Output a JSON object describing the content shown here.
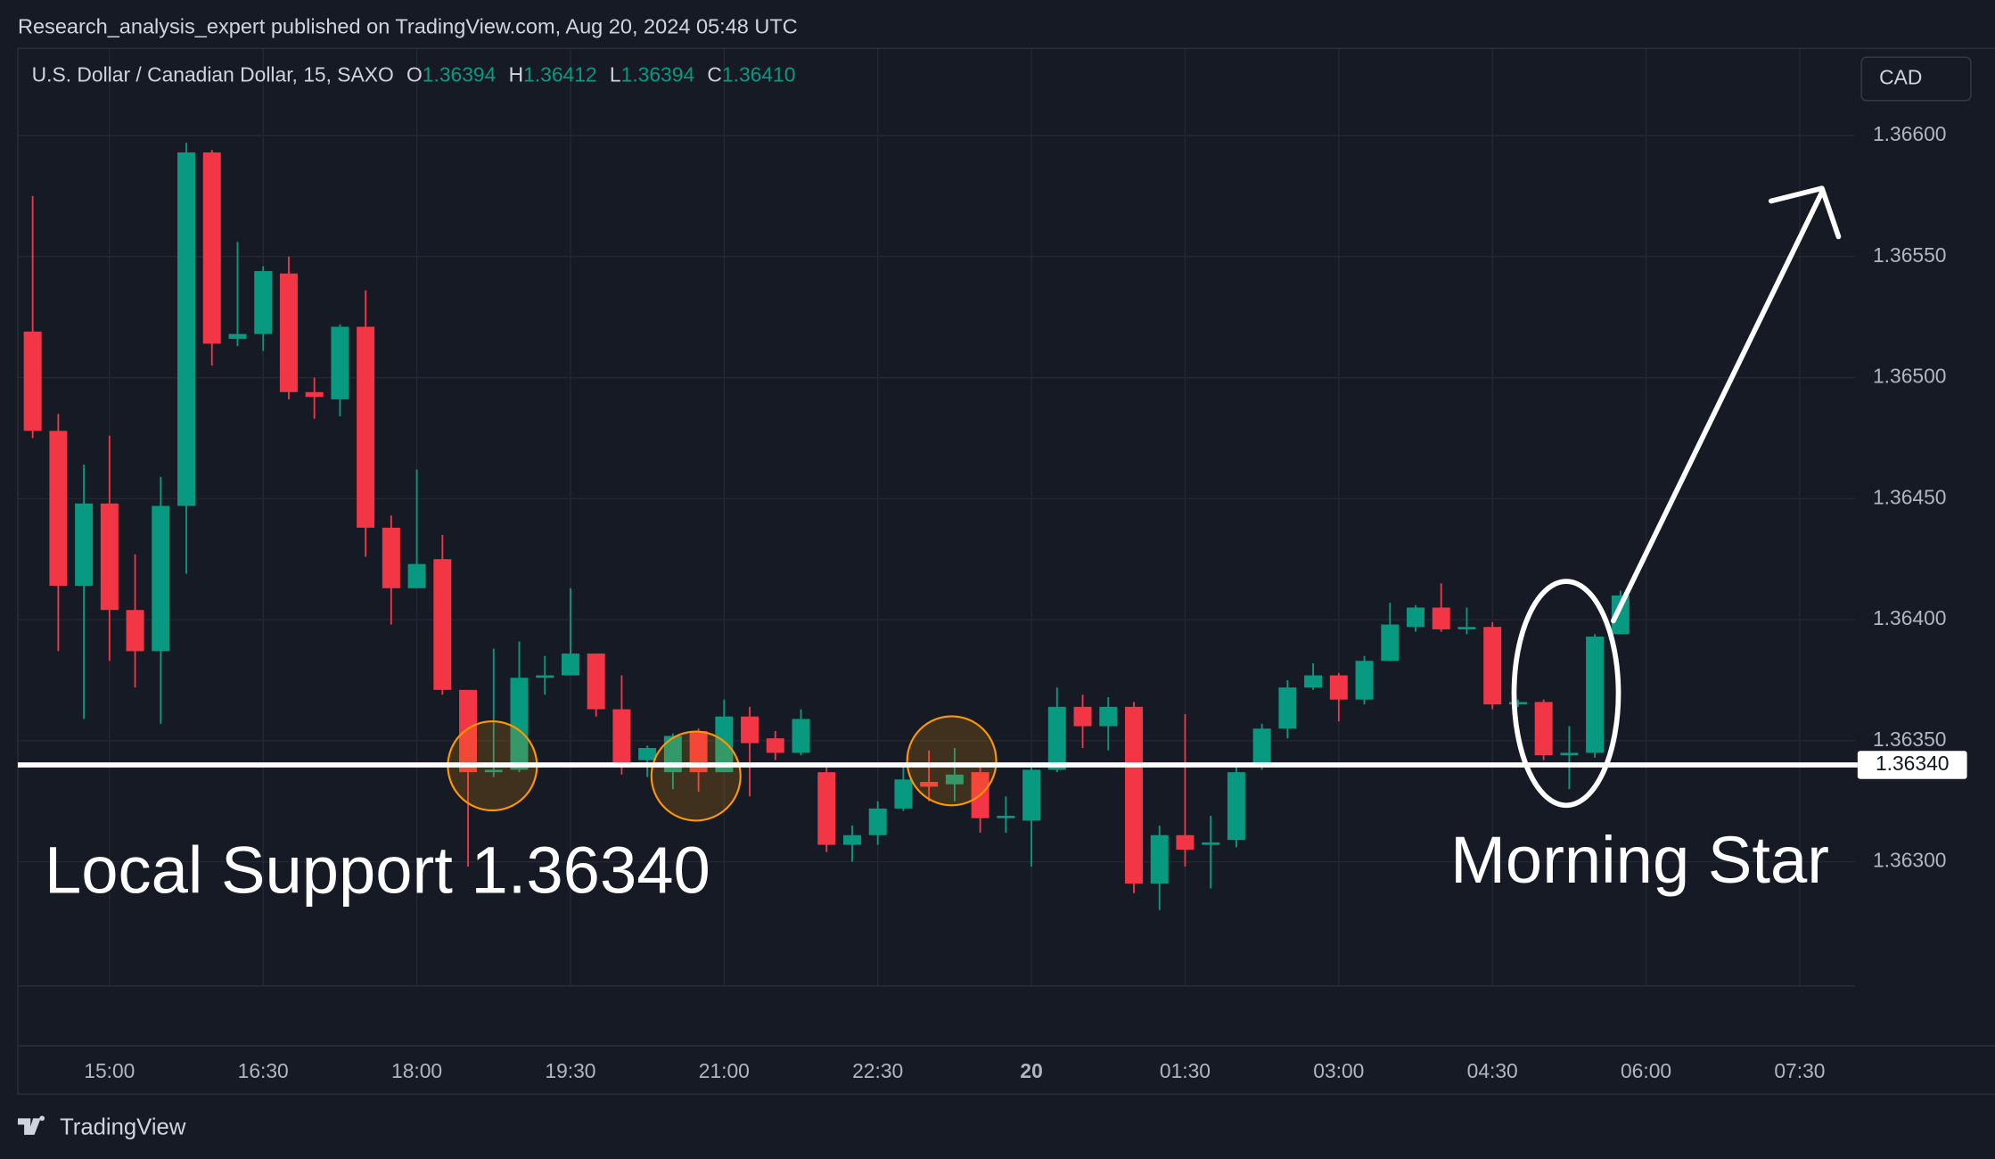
{
  "header": "Research_analysis_expert published on TradingView.com, Aug 20, 2024 05:48 UTC",
  "footer": "TradingView",
  "chart_data": {
    "type": "candlestick",
    "title": "U.S. Dollar / Canadian Dollar, 15, SAXO",
    "ohlc_legend": [
      {
        "label": "O",
        "value": "1.36394"
      },
      {
        "label": "H",
        "value": "1.36412"
      },
      {
        "label": "L",
        "value": "1.36394"
      },
      {
        "label": "C",
        "value": "1.36410"
      }
    ],
    "currency": "CAD",
    "open": [
      1.36519,
      1.36478,
      1.36414,
      1.36448,
      1.36404,
      1.36387,
      1.36447,
      1.36593,
      1.36516,
      1.36518,
      1.36543,
      1.36494,
      1.36491,
      1.36521,
      1.36438,
      1.36413,
      1.36425,
      1.36371,
      1.36337,
      1.36338,
      1.36376,
      1.36377,
      1.36386,
      1.36363,
      1.36342,
      1.36337,
      1.36354,
      1.36337,
      1.3636,
      1.36351,
      1.36345,
      1.36337,
      1.36307,
      1.36311,
      1.36322,
      1.36333,
      1.36332,
      1.36337,
      1.36318,
      1.36317,
      1.36338,
      1.36364,
      1.36356,
      1.36364,
      1.36291,
      1.36311,
      1.36307,
      1.36309,
      1.36341,
      1.36355,
      1.36372,
      1.36377,
      1.36367,
      1.36383,
      1.36397,
      1.36405,
      1.36396,
      1.36397,
      1.36365,
      1.36366,
      1.36344,
      1.36345,
      1.36394
    ],
    "high": [
      1.36575,
      1.36485,
      1.36464,
      1.36476,
      1.36427,
      1.36459,
      1.36597,
      1.36594,
      1.36556,
      1.36546,
      1.3655,
      1.365,
      1.36522,
      1.36536,
      1.36443,
      1.36462,
      1.36435,
      1.36371,
      1.36388,
      1.36391,
      1.36385,
      1.36413,
      1.36386,
      1.36377,
      1.36348,
      1.36353,
      1.36355,
      1.36367,
      1.36364,
      1.36354,
      1.36363,
      1.36341,
      1.36315,
      1.36325,
      1.36341,
      1.36346,
      1.36347,
      1.36341,
      1.36327,
      1.36341,
      1.36372,
      1.36369,
      1.36368,
      1.36366,
      1.36315,
      1.36361,
      1.36319,
      1.36341,
      1.36357,
      1.36375,
      1.36382,
      1.36378,
      1.36385,
      1.36407,
      1.36406,
      1.36415,
      1.36405,
      1.36399,
      1.36367,
      1.36367,
      1.36356,
      1.36394,
      1.36412
    ],
    "low": [
      1.36475,
      1.36387,
      1.36359,
      1.36383,
      1.36372,
      1.36357,
      1.36419,
      1.36505,
      1.36513,
      1.36511,
      1.36491,
      1.36483,
      1.36484,
      1.36426,
      1.36398,
      1.36413,
      1.36369,
      1.36298,
      1.36335,
      1.36337,
      1.36369,
      1.36377,
      1.3636,
      1.36336,
      1.36335,
      1.3633,
      1.36329,
      1.36337,
      1.36327,
      1.36342,
      1.36344,
      1.36304,
      1.363,
      1.36307,
      1.36321,
      1.36325,
      1.36325,
      1.36312,
      1.36312,
      1.36298,
      1.36337,
      1.36347,
      1.36346,
      1.36287,
      1.3628,
      1.36298,
      1.36289,
      1.36306,
      1.36338,
      1.36351,
      1.36371,
      1.36358,
      1.36365,
      1.36383,
      1.36395,
      1.36395,
      1.36394,
      1.36363,
      1.36364,
      1.36342,
      1.3633,
      1.36343,
      1.36394
    ],
    "close": [
      1.36478,
      1.36414,
      1.36448,
      1.36404,
      1.36387,
      1.36447,
      1.36593,
      1.36514,
      1.36518,
      1.36544,
      1.36494,
      1.36492,
      1.36521,
      1.36438,
      1.36413,
      1.36423,
      1.36371,
      1.36337,
      1.36338,
      1.36376,
      1.36377,
      1.36386,
      1.36363,
      1.36341,
      1.36347,
      1.36352,
      1.36337,
      1.3636,
      1.36349,
      1.36345,
      1.36359,
      1.36307,
      1.36311,
      1.36322,
      1.36334,
      1.36331,
      1.36336,
      1.36318,
      1.36319,
      1.36338,
      1.36364,
      1.36356,
      1.36364,
      1.36291,
      1.36311,
      1.36305,
      1.36308,
      1.36337,
      1.36355,
      1.36372,
      1.36377,
      1.36367,
      1.36383,
      1.36398,
      1.36405,
      1.36396,
      1.36397,
      1.36365,
      1.36366,
      1.36344,
      1.36345,
      1.36393,
      1.3641
    ],
    "up_color": "#089981",
    "down_color": "#f23645",
    "xlim": [
      -0.58,
      71.16
    ],
    "xticks": [
      {
        "value": 3,
        "label": "15:00"
      },
      {
        "value": 9,
        "label": "16:30"
      },
      {
        "value": 15,
        "label": "18:00"
      },
      {
        "value": 21,
        "label": "19:30"
      },
      {
        "value": 27,
        "label": "21:00"
      },
      {
        "value": 33,
        "label": "22:30"
      },
      {
        "value": 39,
        "label": "20"
      },
      {
        "value": 45,
        "label": "01:30"
      },
      {
        "value": 51,
        "label": "03:00"
      },
      {
        "value": 57,
        "label": "04:30"
      },
      {
        "value": 63,
        "label": "06:00"
      },
      {
        "value": 69,
        "label": "07:30"
      }
    ],
    "ylim": [
      1.36224,
      1.36636
    ],
    "yticks": [
      {
        "value": 1.363,
        "label": "1.36300"
      },
      {
        "value": 1.3635,
        "label": "1.36350"
      },
      {
        "value": 1.364,
        "label": "1.36400"
      },
      {
        "value": 1.3645,
        "label": "1.36450"
      },
      {
        "value": 1.365,
        "label": "1.36500"
      },
      {
        "value": 1.3655,
        "label": "1.36550"
      },
      {
        "value": 1.366,
        "label": "1.36600"
      }
    ],
    "grid": true,
    "support": {
      "value": 1.3634,
      "label": "1.36340"
    },
    "annotations": [
      "Local Support 1.36340",
      "Morning Star"
    ]
  }
}
